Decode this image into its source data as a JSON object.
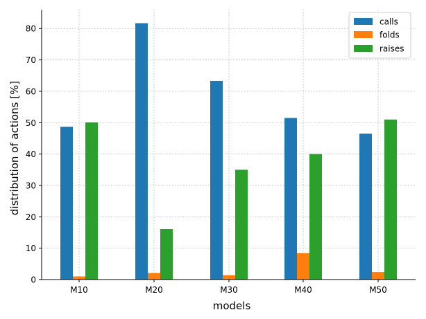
{
  "chart_data": {
    "type": "bar",
    "xlabel": "models",
    "ylabel": "distribution of actions [%]",
    "categories": [
      "M10",
      "M20",
      "M30",
      "M40",
      "M50"
    ],
    "series": [
      {
        "name": "calls",
        "color": "#1f77b4",
        "values": [
          48.7,
          81.7,
          63.3,
          51.5,
          46.5
        ]
      },
      {
        "name": "folds",
        "color": "#ff7f0e",
        "values": [
          1.0,
          2.1,
          1.4,
          8.4,
          2.4
        ]
      },
      {
        "name": "raises",
        "color": "#2ca02c",
        "values": [
          50.1,
          16.1,
          35.0,
          40.0,
          51.0
        ]
      }
    ],
    "ylim": [
      0,
      86
    ],
    "yticks": [
      0,
      10,
      20,
      30,
      40,
      50,
      60,
      70,
      80
    ],
    "grid": true,
    "legend_position": "top-right"
  }
}
